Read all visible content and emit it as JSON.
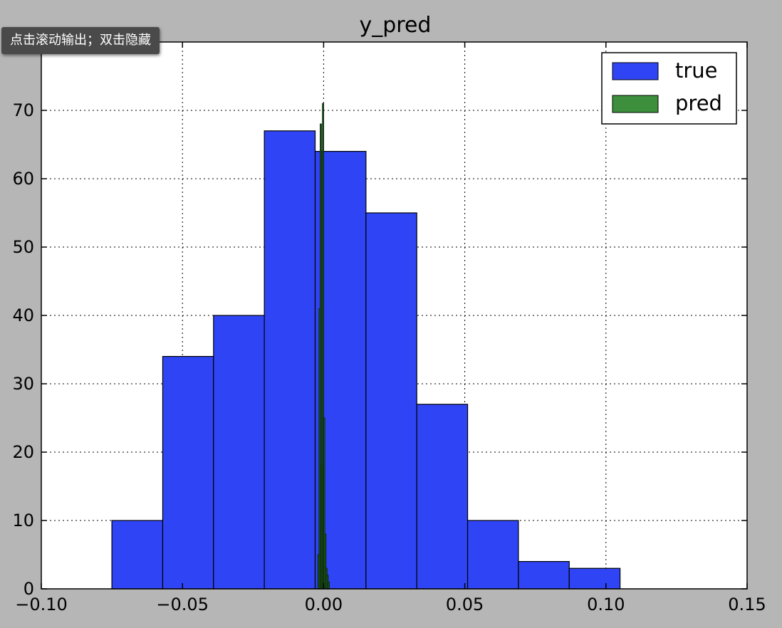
{
  "tooltip": {
    "text": "点击滚动输出；双击隐藏"
  },
  "chart_data": {
    "type": "bar",
    "title": "y_pred",
    "xlabel": "",
    "ylabel": "",
    "xlim": [
      -0.1,
      0.15
    ],
    "ylim": [
      0,
      80
    ],
    "xticks": [
      -0.1,
      -0.05,
      0.0,
      0.05,
      0.1,
      0.15
    ],
    "xtick_labels": [
      "−0.10",
      "−0.05",
      "0.00",
      "0.05",
      "0.10",
      "0.15"
    ],
    "yticks": [
      0,
      10,
      20,
      30,
      40,
      50,
      60,
      70
    ],
    "ytick_labels": [
      "0",
      "10",
      "20",
      "30",
      "40",
      "50",
      "60",
      "70"
    ],
    "grid": true,
    "legend_position": "top-right",
    "series": [
      {
        "name": "true",
        "color": "#2f45f5",
        "bin_edges": [
          -0.075,
          -0.057,
          -0.039,
          -0.021,
          -0.003,
          0.015,
          0.033,
          0.051,
          0.069,
          0.087,
          0.105
        ],
        "counts": [
          10,
          34,
          40,
          67,
          64,
          55,
          27,
          10,
          4,
          3
        ]
      },
      {
        "name": "pred",
        "color": "#3d8f3d",
        "bin_edges": [
          -0.002,
          -0.0016,
          -0.0012,
          -0.0008,
          -0.0004,
          0.0,
          0.0004,
          0.0008,
          0.0012,
          0.0016,
          0.002
        ],
        "counts": [
          5,
          41,
          68,
          18,
          71,
          25,
          8,
          3,
          2,
          1
        ]
      }
    ]
  }
}
